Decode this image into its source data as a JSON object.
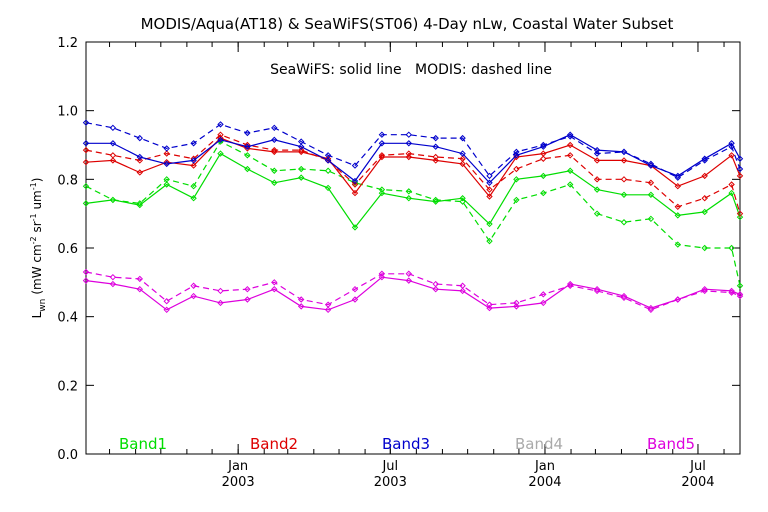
{
  "chart_data": {
    "type": "line",
    "title": "MODIS/Aqua(AT18) & SeaWiFS(ST06) 4-Day nLw, Coastal Water Subset",
    "subtitle": "SeaWiFS: solid line   MODIS: dashed line",
    "ylabel_main": "L",
    "ylabel_sub": "wn",
    "ylabel_units": "(mW cm",
    "ylabel_units_sup1": "-2",
    "ylabel_units_mid": " sr",
    "ylabel_units_sup2": "-1",
    "ylabel_units_end": " um",
    "ylabel_units_sup3": "-1",
    "ylabel_units_close": ")",
    "ylim": [
      0.0,
      1.2
    ],
    "xlim": [
      "2002-07-04",
      "2004-08-20"
    ],
    "y_ticks": [
      "0.0",
      "0.2",
      "0.4",
      "0.6",
      "0.8",
      "1.0",
      "1.2"
    ],
    "x_ticks": [
      {
        "date": "2003-01-01",
        "month": "Jan",
        "year": "2003"
      },
      {
        "date": "2003-07-01",
        "month": "Jul",
        "year": "2003"
      },
      {
        "date": "2004-01-01",
        "month": "Jan",
        "year": "2004"
      },
      {
        "date": "2004-07-01",
        "month": "Jul",
        "year": "2004"
      }
    ],
    "x": [
      "2002-07-04",
      "2002-08-05",
      "2002-09-06",
      "2002-10-08",
      "2002-11-09",
      "2002-12-11",
      "2003-01-12",
      "2003-02-13",
      "2003-03-17",
      "2003-04-18",
      "2003-05-20",
      "2003-06-21",
      "2003-07-23",
      "2003-08-24",
      "2003-09-25",
      "2003-10-27",
      "2003-11-28",
      "2003-12-30",
      "2004-01-31",
      "2004-03-03",
      "2004-04-04",
      "2004-05-06",
      "2004-06-07",
      "2004-07-09",
      "2004-08-10",
      "2004-08-20"
    ],
    "series": [
      {
        "name": "Band1",
        "color": "#00dd00",
        "sensor": "SeaWiFS",
        "style": "solid",
        "values": [
          0.73,
          0.74,
          0.725,
          0.785,
          0.745,
          0.875,
          0.83,
          0.79,
          0.805,
          0.775,
          0.66,
          0.76,
          0.745,
          0.735,
          0.745,
          0.67,
          0.8,
          0.81,
          0.825,
          0.77,
          0.755,
          0.755,
          0.695,
          0.705,
          0.76,
          0.69
        ]
      },
      {
        "name": "Band1",
        "color": "#00dd00",
        "sensor": "MODIS",
        "style": "dashed",
        "values": [
          0.78,
          0.74,
          0.73,
          0.8,
          0.78,
          0.91,
          0.87,
          0.825,
          0.83,
          0.825,
          0.79,
          0.77,
          0.765,
          0.74,
          0.735,
          0.62,
          0.74,
          0.76,
          0.785,
          0.7,
          0.675,
          0.685,
          0.61,
          0.6,
          0.6,
          0.49
        ]
      },
      {
        "name": "Band2",
        "color": "#dd0000",
        "sensor": "SeaWiFS",
        "style": "solid",
        "values": [
          0.85,
          0.855,
          0.82,
          0.85,
          0.84,
          0.92,
          0.89,
          0.88,
          0.88,
          0.86,
          0.76,
          0.865,
          0.865,
          0.855,
          0.845,
          0.75,
          0.865,
          0.875,
          0.9,
          0.855,
          0.855,
          0.84,
          0.78,
          0.81,
          0.87,
          0.81
        ]
      },
      {
        "name": "Band2",
        "color": "#dd0000",
        "sensor": "MODIS",
        "style": "dashed",
        "values": [
          0.885,
          0.87,
          0.855,
          0.875,
          0.86,
          0.93,
          0.9,
          0.885,
          0.885,
          0.855,
          0.785,
          0.87,
          0.875,
          0.865,
          0.86,
          0.77,
          0.83,
          0.86,
          0.87,
          0.8,
          0.8,
          0.79,
          0.72,
          0.745,
          0.785,
          0.7
        ]
      },
      {
        "name": "Band3",
        "color": "#0000cc",
        "sensor": "SeaWiFS",
        "style": "solid",
        "values": [
          0.905,
          0.905,
          0.865,
          0.845,
          0.855,
          0.915,
          0.895,
          0.915,
          0.895,
          0.855,
          0.795,
          0.905,
          0.905,
          0.895,
          0.875,
          0.79,
          0.87,
          0.895,
          0.93,
          0.885,
          0.88,
          0.84,
          0.81,
          0.86,
          0.905,
          0.86
        ]
      },
      {
        "name": "Band3",
        "color": "#0000cc",
        "sensor": "MODIS",
        "style": "dashed",
        "values": [
          0.965,
          0.95,
          0.92,
          0.89,
          0.905,
          0.96,
          0.935,
          0.95,
          0.91,
          0.87,
          0.84,
          0.93,
          0.93,
          0.92,
          0.92,
          0.81,
          0.88,
          0.9,
          0.925,
          0.875,
          0.88,
          0.845,
          0.805,
          0.855,
          0.895,
          0.83
        ]
      },
      {
        "name": "Band5",
        "color": "#dd00dd",
        "sensor": "SeaWiFS",
        "style": "solid",
        "values": [
          0.505,
          0.495,
          0.48,
          0.42,
          0.46,
          0.44,
          0.45,
          0.48,
          0.43,
          0.42,
          0.45,
          0.515,
          0.505,
          0.48,
          0.475,
          0.425,
          0.43,
          0.44,
          0.495,
          0.48,
          0.46,
          0.425,
          0.45,
          0.48,
          0.475,
          0.465
        ]
      },
      {
        "name": "Band5",
        "color": "#dd00dd",
        "sensor": "MODIS",
        "style": "dashed",
        "values": [
          0.53,
          0.515,
          0.51,
          0.445,
          0.49,
          0.475,
          0.48,
          0.5,
          0.45,
          0.435,
          0.48,
          0.525,
          0.525,
          0.495,
          0.49,
          0.435,
          0.44,
          0.465,
          0.49,
          0.475,
          0.455,
          0.42,
          0.45,
          0.475,
          0.47,
          0.46
        ]
      }
    ],
    "band_labels": [
      {
        "text": "Band1",
        "color": "#00dd00"
      },
      {
        "text": "Band2",
        "color": "#dd0000"
      },
      {
        "text": "Band3",
        "color": "#0000cc"
      },
      {
        "text": "Band4",
        "color": "#aaaaaa"
      },
      {
        "text": "Band5",
        "color": "#dd00dd"
      }
    ]
  }
}
